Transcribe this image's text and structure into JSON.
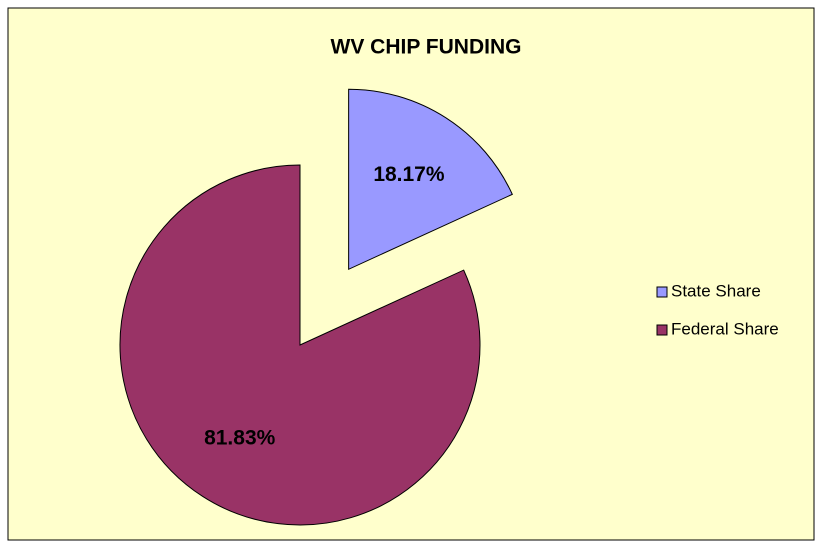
{
  "chart_data": {
    "type": "pie",
    "title": "WV CHIP FUNDING",
    "categories": [
      "State Share",
      "Federal Share"
    ],
    "values": [
      18.17,
      81.83
    ],
    "value_labels": [
      "18.17%",
      "81.83%"
    ],
    "colors": [
      "#9999ff",
      "#993366"
    ],
    "explode": [
      true,
      false
    ],
    "legend": "right"
  }
}
